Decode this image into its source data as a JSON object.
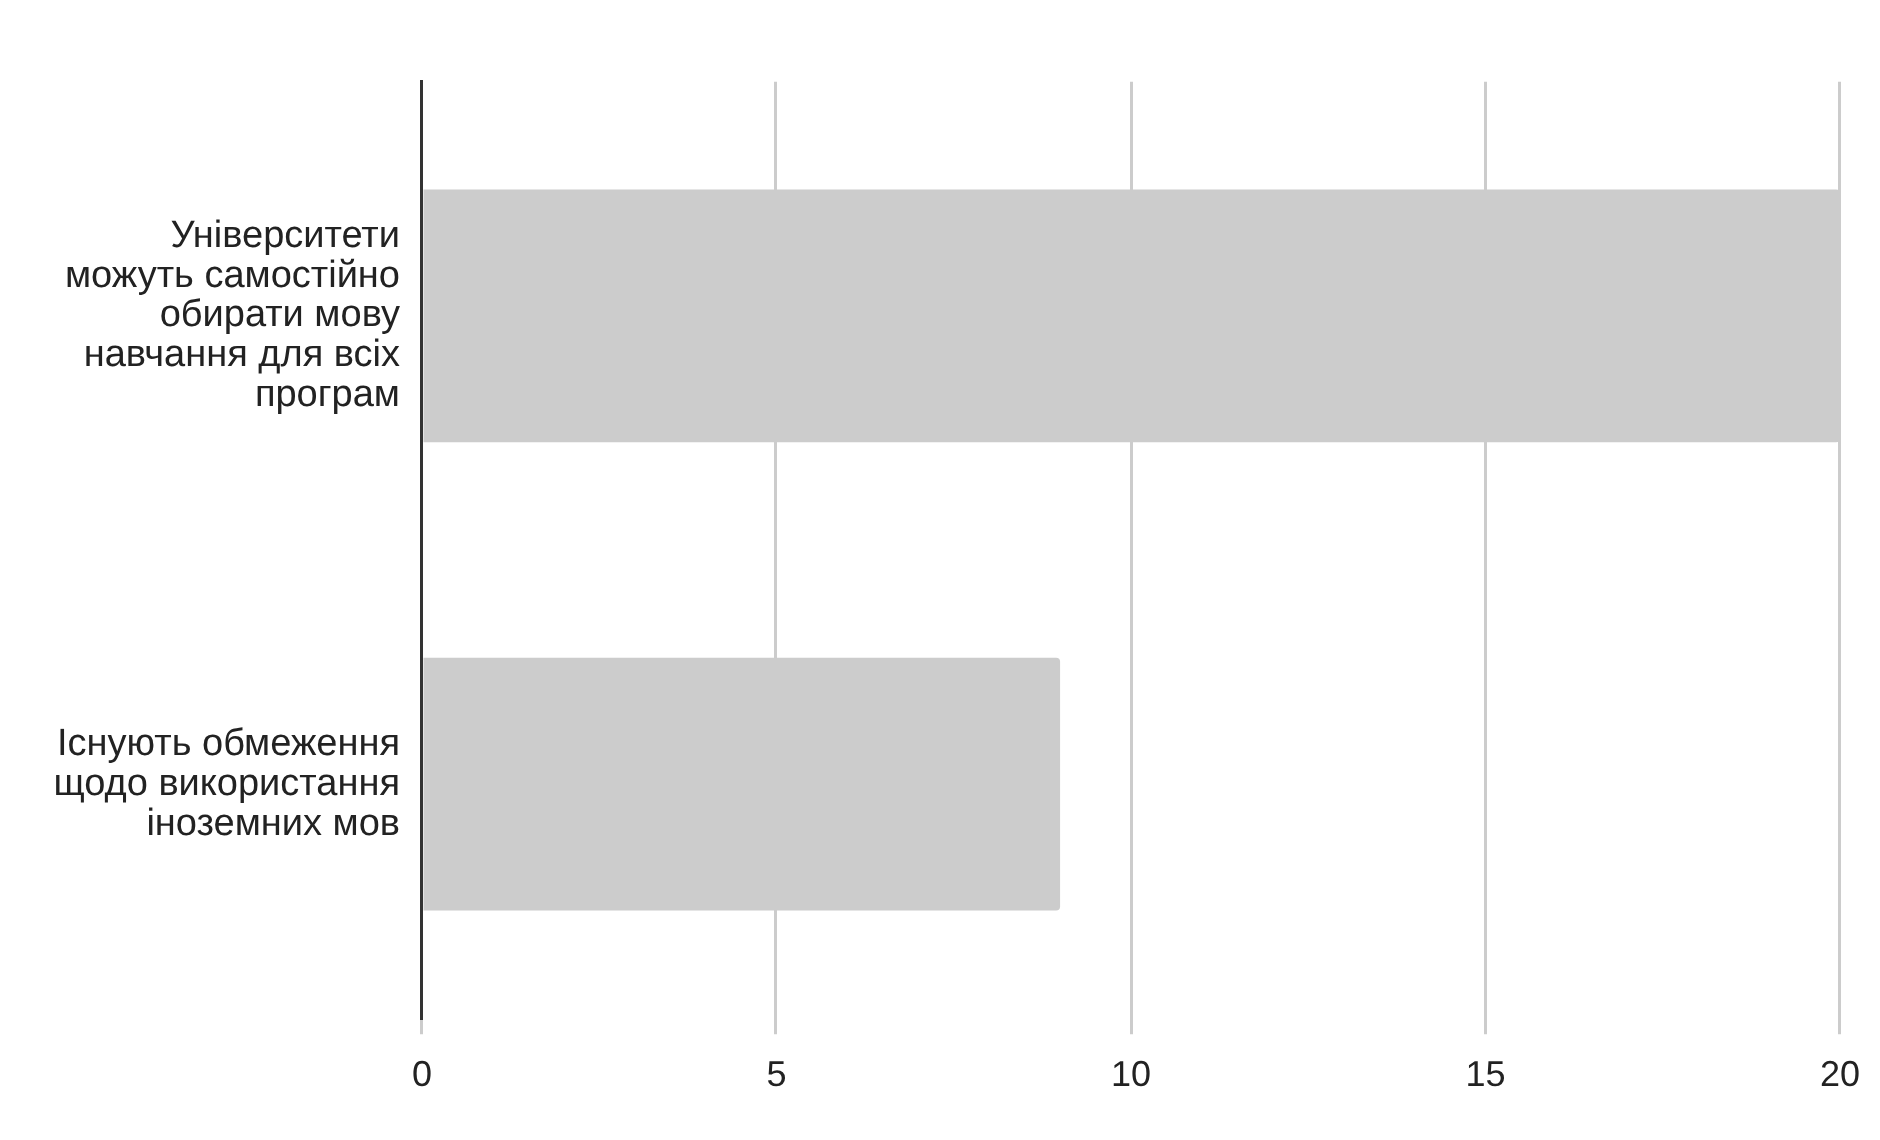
{
  "chart_data": {
    "type": "bar",
    "orientation": "horizontal",
    "categories": [
      "Університети можуть самостійно обирати мову навчання для всіх програм",
      "Існують обмеження щодо використання іноземних мов"
    ],
    "values": [
      20,
      9
    ],
    "color": "#cccccc",
    "xlim": [
      0,
      20
    ],
    "xticks": [
      0,
      5,
      10,
      15,
      20
    ],
    "grid": "x"
  }
}
